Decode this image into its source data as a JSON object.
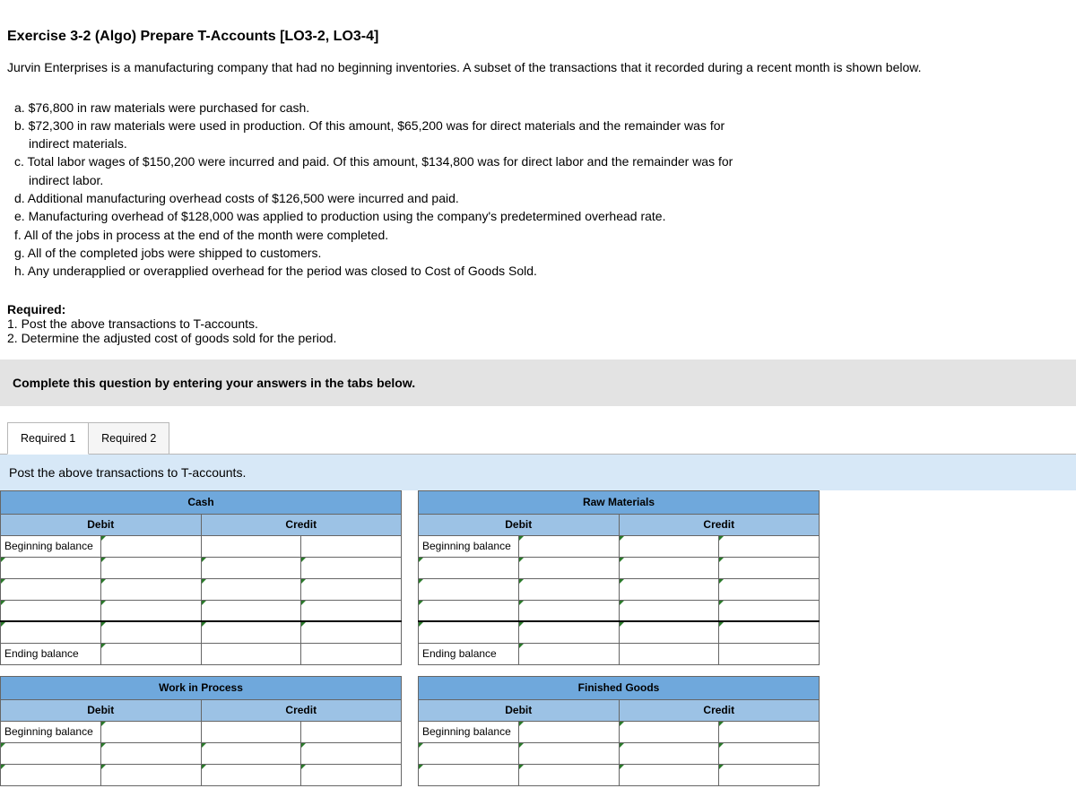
{
  "title": "Exercise 3-2 (Algo) Prepare T-Accounts [LO3-2, LO3-4]",
  "intro": "Jurvin Enterprises is a manufacturing company that had no beginning inventories. A subset of the transactions that it recorded during a recent month is shown below.",
  "transactions": [
    {
      "text": "a. $76,800 in raw materials were purchased for cash.",
      "indent": false
    },
    {
      "text": "b. $72,300 in raw materials were used in production. Of this amount, $65,200 was for direct materials and the remainder was for",
      "indent": false
    },
    {
      "text": "indirect materials.",
      "indent": true
    },
    {
      "text": "c. Total labor wages of $150,200 were incurred and paid. Of this amount, $134,800 was for direct labor and the remainder was for",
      "indent": false
    },
    {
      "text": "indirect labor.",
      "indent": true
    },
    {
      "text": "d. Additional manufacturing overhead costs of $126,500 were incurred and paid.",
      "indent": false
    },
    {
      "text": "e. Manufacturing overhead of $128,000 was applied to production using the company's predetermined overhead rate.",
      "indent": false
    },
    {
      "text": " f. All of the jobs in process at the end of the month were completed.",
      "indent": false
    },
    {
      "text": "g. All of the completed jobs were shipped to customers.",
      "indent": false
    },
    {
      "text": "h. Any underapplied or overapplied overhead for the period was closed to Cost of Goods Sold.",
      "indent": false
    }
  ],
  "required": {
    "label": "Required:",
    "items": [
      "1. Post the above transactions to T-accounts.",
      "2. Determine the adjusted cost of goods sold for the period."
    ]
  },
  "instruction_bar": "Complete this question by entering your answers in the tabs below.",
  "tabs": {
    "tab1": "Required 1",
    "tab2": "Required 2"
  },
  "sub_instruction": "Post the above transactions to T-accounts.",
  "t_accounts": {
    "column_headers": {
      "debit": "Debit",
      "credit": "Credit"
    },
    "row_labels": {
      "beginning": "Beginning balance",
      "ending": "Ending balance"
    },
    "colors": {
      "header_bg": "#6fa8dc",
      "subheader_bg": "#9cc2e5",
      "border": "#666666",
      "edit_marker": "#2a7a2a"
    },
    "accounts": [
      {
        "name": "Cash",
        "col": 0
      },
      {
        "name": "Raw Materials",
        "col": 1
      },
      {
        "name": "Work in Process",
        "col": 0
      },
      {
        "name": "Finished Goods",
        "col": 1
      }
    ]
  }
}
